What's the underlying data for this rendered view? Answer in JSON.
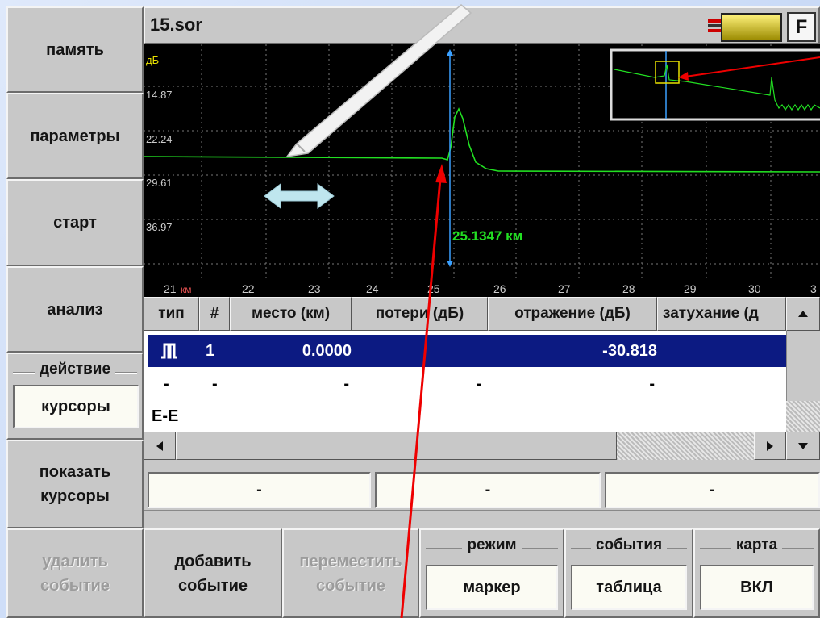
{
  "sidebar": {
    "memory": "память",
    "parameters": "параметры",
    "start": "старт",
    "analysis": "анализ",
    "action_label": "действие",
    "action_value": "курсоры",
    "show_cursors": "показать курсоры"
  },
  "file_name": "15.sor",
  "f_button": "F",
  "graph": {
    "y_unit": "дБ",
    "y_labels": [
      "14.87",
      "22.24",
      "29.61",
      "36.97"
    ],
    "x_labels": [
      "21",
      "22",
      "23",
      "24",
      "25",
      "26",
      "27",
      "28",
      "29",
      "30",
      "3"
    ],
    "x_unit": "км",
    "cursor_label": "25.1347 км"
  },
  "table": {
    "columns": [
      "тип",
      "#",
      "место (км)",
      "потери (дБ)",
      "отражение (дБ)",
      "затухание (д"
    ],
    "rows": [
      {
        "number": "1",
        "place": "0.0000",
        "reflection": "-30.818"
      },
      {
        "type": "-",
        "number": "-",
        "place": "-",
        "loss": "-",
        "reflection": "-"
      },
      {
        "type": "E-E"
      }
    ]
  },
  "cursors": [
    "-",
    "-",
    "-"
  ],
  "bottom": {
    "delete_event": "удалить событие",
    "add_event": "добавить событие",
    "move_event": "переместить событие",
    "mode_label": "режим",
    "mode_value": "маркер",
    "events_label": "события",
    "events_value": "таблица",
    "map_label": "карта",
    "map_value": "ВКЛ"
  }
}
